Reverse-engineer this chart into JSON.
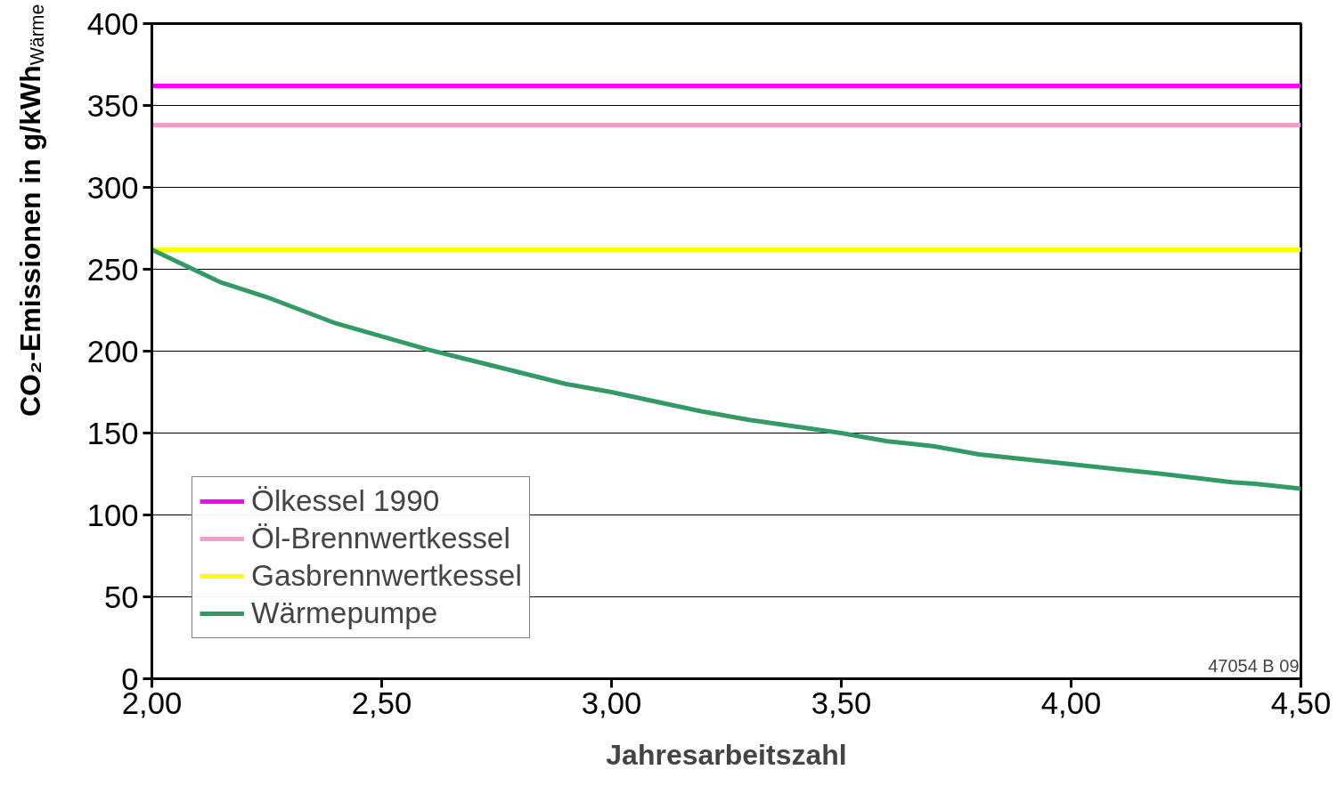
{
  "chart_data": {
    "type": "line",
    "xlabel": "Jahresarbeitszahl",
    "ylabel": "CO₂-Emissionen in g/kWh$_{Wärme}$",
    "annotations": [
      "47054 B 09"
    ],
    "xlim": [
      2.0,
      4.5
    ],
    "xticks": [
      {
        "value": 2.0,
        "label": "2,00"
      },
      {
        "value": 2.5,
        "label": "2,50"
      },
      {
        "value": 3.0,
        "label": "3,00"
      },
      {
        "value": 3.5,
        "label": "3,50"
      },
      {
        "value": 4.0,
        "label": "4,00"
      },
      {
        "value": 4.5,
        "label": "4,50"
      }
    ],
    "ylim": [
      0,
      400
    ],
    "yticks": [
      0,
      50,
      100,
      150,
      200,
      250,
      300,
      350,
      400
    ],
    "grid": "y",
    "legend": "bottom left",
    "marker": "none",
    "line_style": "solid",
    "series": [
      {
        "name": "Ölkessel 1990",
        "color": "#ff00ff",
        "x": [
          2.0,
          4.5
        ],
        "values": [
          362,
          362
        ]
      },
      {
        "name": "Öl-Brennwertkessel",
        "color": "#ff99cc",
        "x": [
          2.0,
          4.5
        ],
        "values": [
          338,
          338
        ]
      },
      {
        "name": "Gasbrennwertkessel",
        "color": "#ffff00",
        "x": [
          2.0,
          4.5
        ],
        "values": [
          262,
          262
        ]
      },
      {
        "name": "Wärmepumpe",
        "color": "#339966",
        "x": [
          2.0,
          2.15,
          2.25,
          2.4,
          2.5,
          2.6,
          2.7,
          2.9,
          3.0,
          3.2,
          3.3,
          3.5,
          3.6,
          3.7,
          3.8,
          4.0,
          4.2,
          4.35,
          4.4,
          4.5
        ],
        "values": [
          262,
          242,
          233,
          217,
          209,
          201,
          194,
          180,
          175,
          163,
          158,
          150,
          145,
          142,
          137,
          131,
          125,
          120,
          119,
          116
        ]
      }
    ]
  }
}
